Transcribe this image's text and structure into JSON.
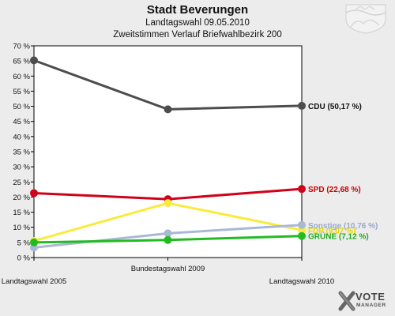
{
  "header": {
    "title": "Stadt Beverungen",
    "subtitle1": "Landtagswahl 09.05.2010",
    "subtitle2": "Zweitstimmen Verlauf Briefwahlbezirk 200"
  },
  "chart_data": {
    "type": "line",
    "title": "Stadt Beverungen",
    "subtitle": [
      "Landtagswahl 09.05.2010",
      "Zweitstimmen Verlauf Briefwahlbezirk 200"
    ],
    "categories": [
      "Landtagswahl 2005",
      "Bundestagswahl 2009",
      "Landtagswahl 2010"
    ],
    "ylim": [
      0,
      70
    ],
    "yticks": [
      0,
      5,
      10,
      15,
      20,
      25,
      30,
      35,
      40,
      45,
      50,
      55,
      60,
      65,
      70
    ],
    "ytick_labels": [
      "0 %",
      "5 %",
      "10 %",
      "15 %",
      "20 %",
      "25 %",
      "30 %",
      "35 %",
      "40 %",
      "45 %",
      "50 %",
      "55 %",
      "60 %",
      "65 %",
      "70 %"
    ],
    "grid": false,
    "series": [
      {
        "name": "CDU",
        "color": "#4d4d4d",
        "values": [
          65.2,
          49.0,
          50.17
        ],
        "end_label": "CDU (50,17 %)",
        "label_color": "#111111"
      },
      {
        "name": "SPD",
        "color": "#d0021b",
        "values": [
          21.3,
          19.3,
          22.68
        ],
        "end_label": "SPD (22,68 %)",
        "label_color": "#cc0000"
      },
      {
        "name": "FDP",
        "color": "#f7ec3e",
        "values": [
          5.5,
          18.0,
          9.07
        ],
        "end_label": "FDP (9,07 %)",
        "label_color": "#e8d800"
      },
      {
        "name": "Sonstige",
        "color": "#aab8d8",
        "values": [
          3.3,
          8.0,
          10.76
        ],
        "end_label": "Sonstige (10,76 %)",
        "label_color": "#99a8cc"
      },
      {
        "name": "GRÜNE",
        "color": "#22bb22",
        "values": [
          5.0,
          5.8,
          7.12
        ],
        "end_label": "GRÜNE (7,12 %)",
        "label_color": "#22aa22"
      }
    ]
  },
  "logo": {
    "vote": "VOTE",
    "manager": "MANAGER"
  }
}
